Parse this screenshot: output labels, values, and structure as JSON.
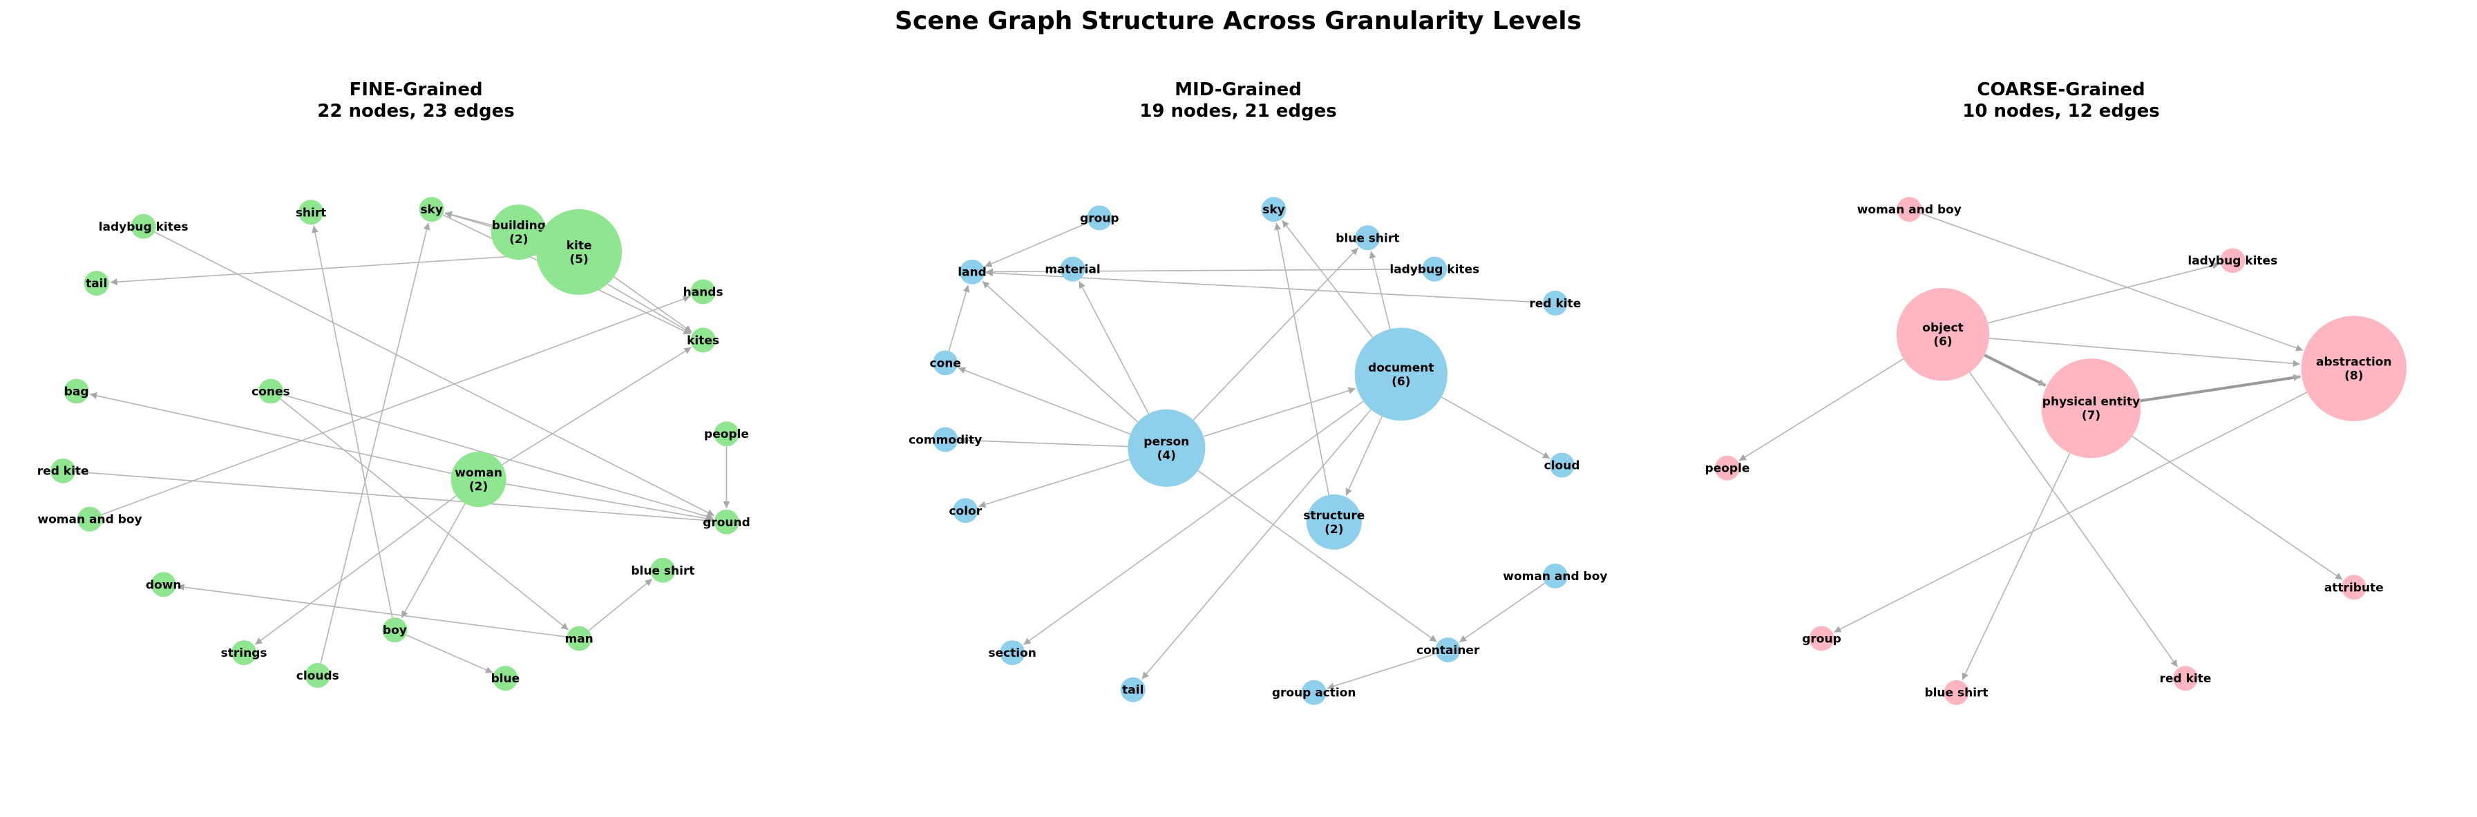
{
  "figure": {
    "title": "Scene Graph Structure Across Granularity Levels"
  },
  "chart_data": [
    {
      "type": "network",
      "id": "fine",
      "title": "FINE-Grained",
      "subtitle": "22 nodes, 23 edges",
      "node_color": "#90e690",
      "nodes": [
        {
          "id": "ladybug kites",
          "x": 0.08,
          "y": 0.08
        },
        {
          "id": "shirt",
          "x": 0.33,
          "y": 0.055
        },
        {
          "id": "sky",
          "x": 0.51,
          "y": 0.05
        },
        {
          "id": "building",
          "count": 2,
          "x": 0.64,
          "y": 0.09
        },
        {
          "id": "kite",
          "count": 5,
          "x": 0.73,
          "y": 0.125
        },
        {
          "id": "tail",
          "x": 0.01,
          "y": 0.18
        },
        {
          "id": "hands",
          "x": 0.915,
          "y": 0.195
        },
        {
          "id": "kites",
          "x": 0.915,
          "y": 0.28
        },
        {
          "id": "bag",
          "x": -0.02,
          "y": 0.37
        },
        {
          "id": "cones",
          "x": 0.27,
          "y": 0.37
        },
        {
          "id": "people",
          "x": 0.95,
          "y": 0.445
        },
        {
          "id": "red kite",
          "x": -0.04,
          "y": 0.51
        },
        {
          "id": "woman",
          "count": 2,
          "x": 0.58,
          "y": 0.525
        },
        {
          "id": "ground",
          "x": 0.95,
          "y": 0.6
        },
        {
          "id": "woman and boy",
          "x": 0.0,
          "y": 0.595
        },
        {
          "id": "blue shirt",
          "x": 0.855,
          "y": 0.685
        },
        {
          "id": "down",
          "x": 0.11,
          "y": 0.71
        },
        {
          "id": "man",
          "x": 0.73,
          "y": 0.805
        },
        {
          "id": "boy",
          "x": 0.455,
          "y": 0.79
        },
        {
          "id": "strings",
          "x": 0.23,
          "y": 0.83
        },
        {
          "id": "clouds",
          "x": 0.34,
          "y": 0.87
        },
        {
          "id": "blue",
          "x": 0.62,
          "y": 0.875
        }
      ],
      "edges": [
        [
          "building",
          "sky"
        ],
        [
          "kite",
          "sky"
        ],
        [
          "kite",
          "kites"
        ],
        [
          "kite",
          "tail"
        ],
        [
          "building",
          "kites"
        ],
        [
          "sky",
          "kites"
        ],
        [
          "ladybug kites",
          "ground"
        ],
        [
          "woman",
          "bag"
        ],
        [
          "woman",
          "ground"
        ],
        [
          "woman",
          "boy"
        ],
        [
          "woman",
          "kites"
        ],
        [
          "woman",
          "strings"
        ],
        [
          "cones",
          "ground"
        ],
        [
          "cones",
          "man"
        ],
        [
          "red kite",
          "ground"
        ],
        [
          "people",
          "ground"
        ],
        [
          "woman and boy",
          "hands"
        ],
        [
          "man",
          "down"
        ],
        [
          "man",
          "blue shirt"
        ],
        [
          "boy",
          "shirt"
        ],
        [
          "boy",
          "blue"
        ],
        [
          "clouds",
          "sky"
        ],
        [
          "kite",
          "building"
        ]
      ]
    },
    {
      "type": "network",
      "id": "mid",
      "title": "MID-Grained",
      "subtitle": "19 nodes, 21 edges",
      "node_color": "#8ecfec",
      "nodes": [
        {
          "id": "group",
          "x": 0.29,
          "y": 0.065
        },
        {
          "id": "sky",
          "x": 0.55,
          "y": 0.05
        },
        {
          "id": "blue shirt",
          "x": 0.69,
          "y": 0.1
        },
        {
          "id": "land",
          "x": 0.1,
          "y": 0.16
        },
        {
          "id": "material",
          "x": 0.25,
          "y": 0.155
        },
        {
          "id": "ladybug kites",
          "x": 0.79,
          "y": 0.155
        },
        {
          "id": "red kite",
          "x": 0.97,
          "y": 0.215
        },
        {
          "id": "cone",
          "x": 0.06,
          "y": 0.32
        },
        {
          "id": "document",
          "count": 6,
          "x": 0.74,
          "y": 0.34
        },
        {
          "id": "commodity",
          "x": 0.06,
          "y": 0.455
        },
        {
          "id": "person",
          "count": 4,
          "x": 0.39,
          "y": 0.47
        },
        {
          "id": "cloud",
          "x": 0.98,
          "y": 0.5
        },
        {
          "id": "structure",
          "count": 2,
          "x": 0.64,
          "y": 0.6
        },
        {
          "id": "color",
          "x": 0.09,
          "y": 0.58
        },
        {
          "id": "woman and boy",
          "x": 0.97,
          "y": 0.695
        },
        {
          "id": "section",
          "x": 0.16,
          "y": 0.83
        },
        {
          "id": "container",
          "x": 0.81,
          "y": 0.825
        },
        {
          "id": "tail",
          "x": 0.34,
          "y": 0.895
        },
        {
          "id": "group action",
          "x": 0.61,
          "y": 0.9
        }
      ],
      "edges": [
        [
          "person",
          "land"
        ],
        [
          "person",
          "cone"
        ],
        [
          "person",
          "material"
        ],
        [
          "person",
          "commodity"
        ],
        [
          "person",
          "color"
        ],
        [
          "person",
          "blue shirt"
        ],
        [
          "person",
          "container"
        ],
        [
          "person",
          "document"
        ],
        [
          "document",
          "sky"
        ],
        [
          "document",
          "blue shirt"
        ],
        [
          "document",
          "structure"
        ],
        [
          "document",
          "cloud"
        ],
        [
          "document",
          "section"
        ],
        [
          "document",
          "tail"
        ],
        [
          "group",
          "land"
        ],
        [
          "cone",
          "land"
        ],
        [
          "ladybug kites",
          "land"
        ],
        [
          "red kite",
          "land"
        ],
        [
          "structure",
          "sky"
        ],
        [
          "woman and boy",
          "container"
        ],
        [
          "container",
          "group action"
        ]
      ]
    },
    {
      "type": "network",
      "id": "coarse",
      "title": "COARSE-Grained",
      "subtitle": "10 nodes, 12 edges",
      "node_color": "#ffb6c1",
      "nodes": [
        {
          "id": "woman and boy",
          "x": 0.27,
          "y": 0.05
        },
        {
          "id": "ladybug kites",
          "x": 0.75,
          "y": 0.14
        },
        {
          "id": "object",
          "count": 6,
          "x": 0.32,
          "y": 0.27
        },
        {
          "id": "abstraction",
          "count": 8,
          "x": 0.93,
          "y": 0.33
        },
        {
          "id": "physical entity",
          "count": 7,
          "x": 0.54,
          "y": 0.4
        },
        {
          "id": "people",
          "x": 0.0,
          "y": 0.505
        },
        {
          "id": "attribute",
          "x": 0.93,
          "y": 0.715
        },
        {
          "id": "group",
          "x": 0.14,
          "y": 0.805
        },
        {
          "id": "red kite",
          "x": 0.68,
          "y": 0.875
        },
        {
          "id": "blue shirt",
          "x": 0.34,
          "y": 0.9
        }
      ],
      "edges": [
        [
          "object",
          "physical entity"
        ],
        [
          "object",
          "abstraction"
        ],
        [
          "physical entity",
          "abstraction"
        ],
        [
          "woman and boy",
          "abstraction"
        ],
        [
          "object",
          "ladybug kites"
        ],
        [
          "object",
          "people"
        ],
        [
          "object",
          "red kite"
        ],
        [
          "physical entity",
          "blue shirt"
        ],
        [
          "physical entity",
          "attribute"
        ],
        [
          "abstraction",
          "group"
        ],
        [
          "physical entity",
          "object"
        ],
        [
          "abstraction",
          "physical entity"
        ]
      ]
    }
  ]
}
